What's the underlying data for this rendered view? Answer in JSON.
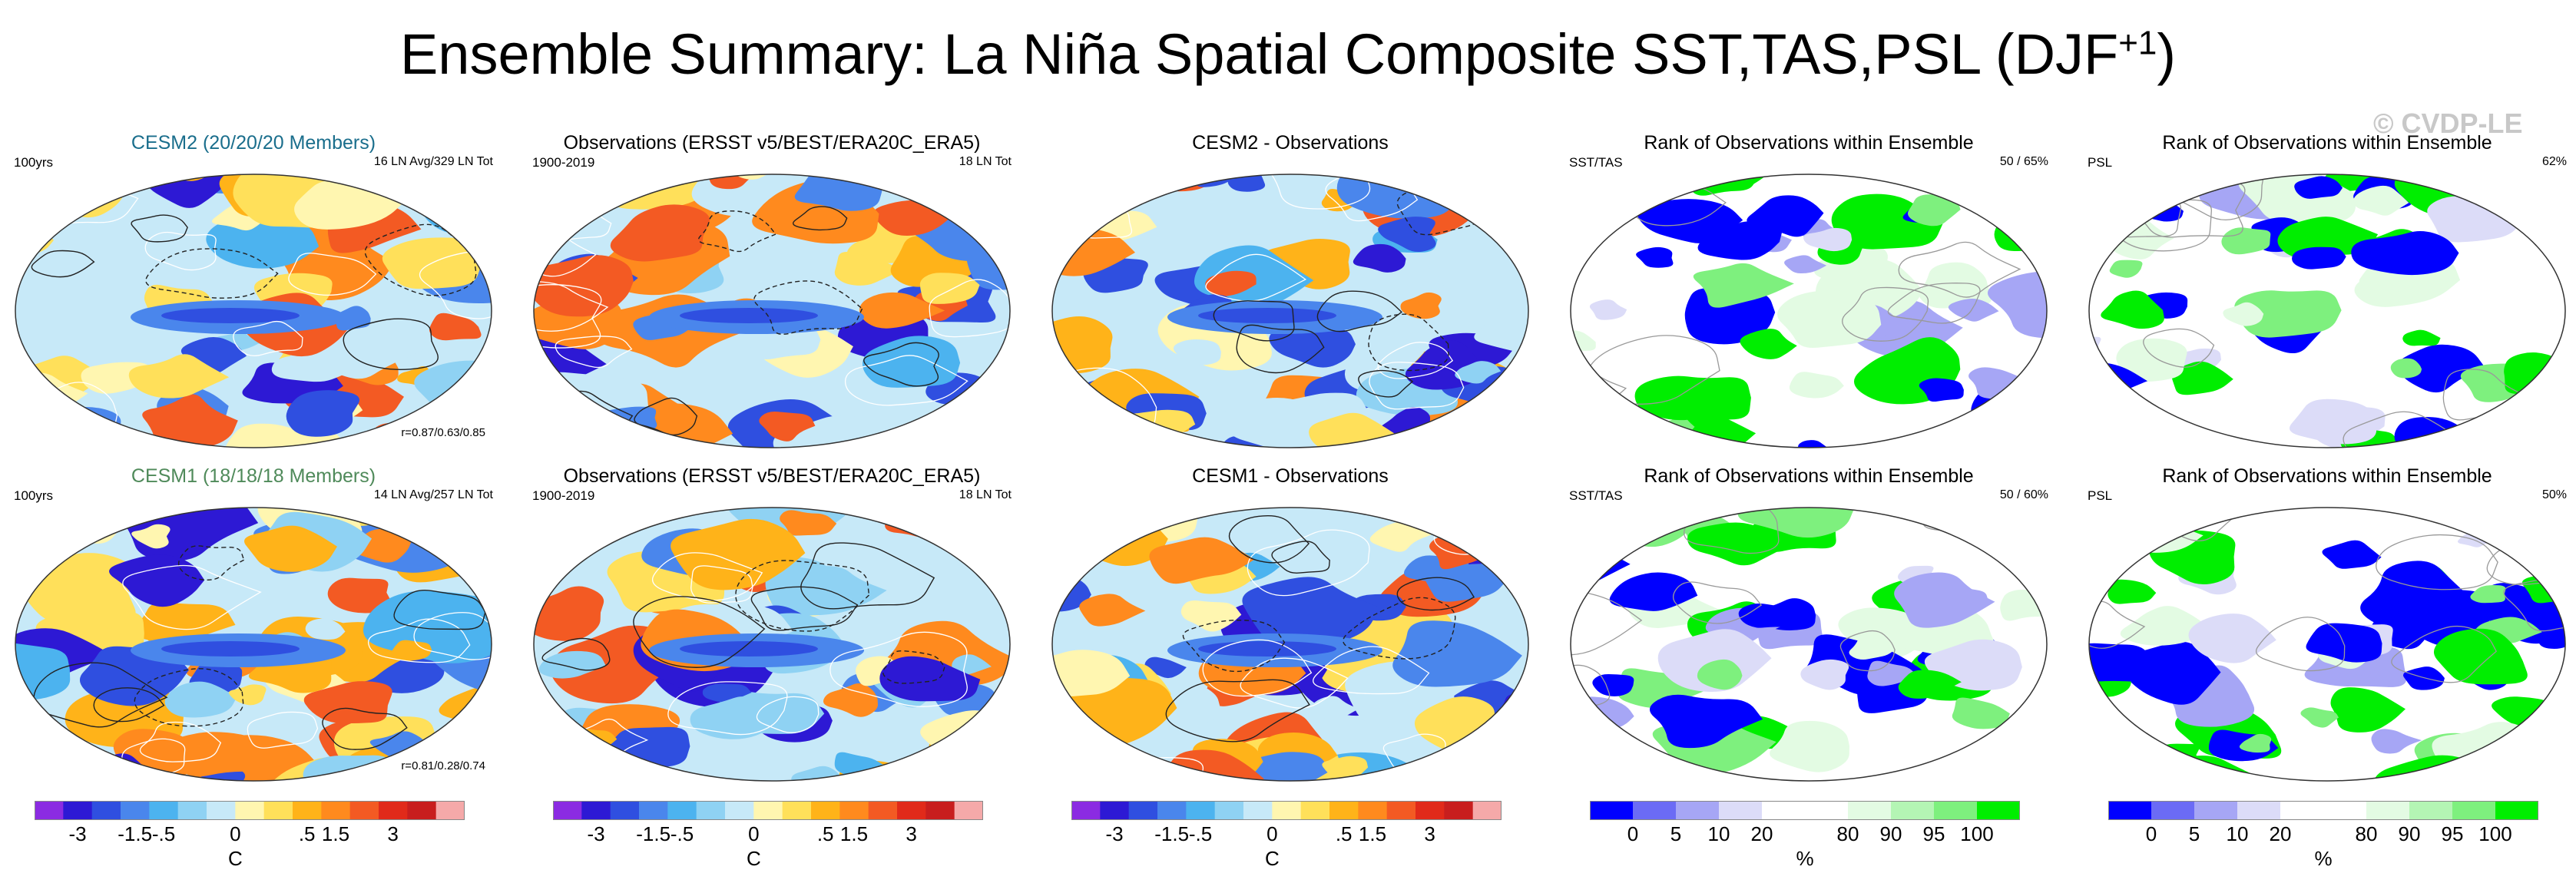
{
  "title": "Ensemble Summary: La Niña Spatial Composite SST,TAS,PSL (DJF",
  "title_superscript": "+1",
  "title_close": ")",
  "watermark": "© CVDP-LE",
  "colors": {
    "anomaly_scale": [
      "#8b2be2",
      "#2d19d4",
      "#2f4fe0",
      "#4a86ec",
      "#4cb3ef",
      "#8fd2f3",
      "#c7e9f8",
      "#fff6b0",
      "#ffe05a",
      "#ffb319",
      "#ff8a1e",
      "#f35a23",
      "#e12a1a",
      "#c81e1e",
      "#f5a9a9"
    ],
    "rank_scale": [
      "#0000ff",
      "#6b6bf5",
      "#a6a6f5",
      "#dcdcf8",
      "#ffffff",
      "#ffffff",
      "#e3fbe3",
      "#b4f5b4",
      "#7ef07e",
      "#00ee00"
    ],
    "coastline": "#ffffff"
  },
  "chart_data": [
    {
      "id": "p1",
      "type": "map",
      "title": "CESM2 (20/20/20 Members)",
      "title_color": "#1a6e8c",
      "left_label": "100yrs",
      "right_label": "16 LN Avg/329 LN Tot",
      "corr_label": "r=0.87/0.63/0.85",
      "scale": "anomaly",
      "contours": true
    },
    {
      "id": "p2",
      "type": "map",
      "title": "Observations (ERSST v5/BEST/ERA20C_ERA5)",
      "title_color": "#000000",
      "left_label": "1900-2019",
      "right_label": "18 LN Tot",
      "scale": "anomaly",
      "contours": true
    },
    {
      "id": "p3",
      "type": "map",
      "title": "CESM2 - Observations",
      "title_color": "#000000",
      "scale": "anomaly",
      "contours": true
    },
    {
      "id": "p4",
      "type": "map",
      "title": "Rank of Observations within Ensemble",
      "title_color": "#000000",
      "left_label": "SST/TAS",
      "right_label": "50 /  65%",
      "scale": "rank",
      "contours": false
    },
    {
      "id": "p5",
      "type": "map",
      "title": "Rank of Observations within Ensemble",
      "title_color": "#000000",
      "left_label": "PSL",
      "right_label": "62%",
      "scale": "rank",
      "contours": false
    },
    {
      "id": "p6",
      "type": "map",
      "title": "CESM1 (18/18/18 Members)",
      "title_color": "#4f8a5a",
      "left_label": "100yrs",
      "right_label": "14 LN Avg/257 LN Tot",
      "corr_label": "r=0.81/0.28/0.74",
      "scale": "anomaly",
      "contours": true
    },
    {
      "id": "p7",
      "type": "map",
      "title": "Observations (ERSST v5/BEST/ERA20C_ERA5)",
      "title_color": "#000000",
      "left_label": "1900-2019",
      "right_label": "18 LN Tot",
      "scale": "anomaly",
      "contours": true
    },
    {
      "id": "p8",
      "type": "map",
      "title": "CESM1 - Observations",
      "title_color": "#000000",
      "scale": "anomaly",
      "contours": true
    },
    {
      "id": "p9",
      "type": "map",
      "title": "Rank of Observations within Ensemble",
      "title_color": "#000000",
      "left_label": "SST/TAS",
      "right_label": "50 /  60%",
      "scale": "rank",
      "contours": false
    },
    {
      "id": "p10",
      "type": "map",
      "title": "Rank of Observations within Ensemble",
      "title_color": "#000000",
      "left_label": "PSL",
      "right_label": "50%",
      "scale": "rank",
      "contours": false
    }
  ],
  "colorbars": {
    "anomaly": {
      "ticks": [
        "-3",
        "-1.5",
        "-.5",
        "0",
        ".5",
        "1.5",
        "3"
      ],
      "unit": "C",
      "segments": 15
    },
    "rank": {
      "ticks": [
        "0",
        "5",
        "10",
        "20",
        "80",
        "90",
        "95",
        "100"
      ],
      "unit": "%",
      "segments": 10
    }
  }
}
